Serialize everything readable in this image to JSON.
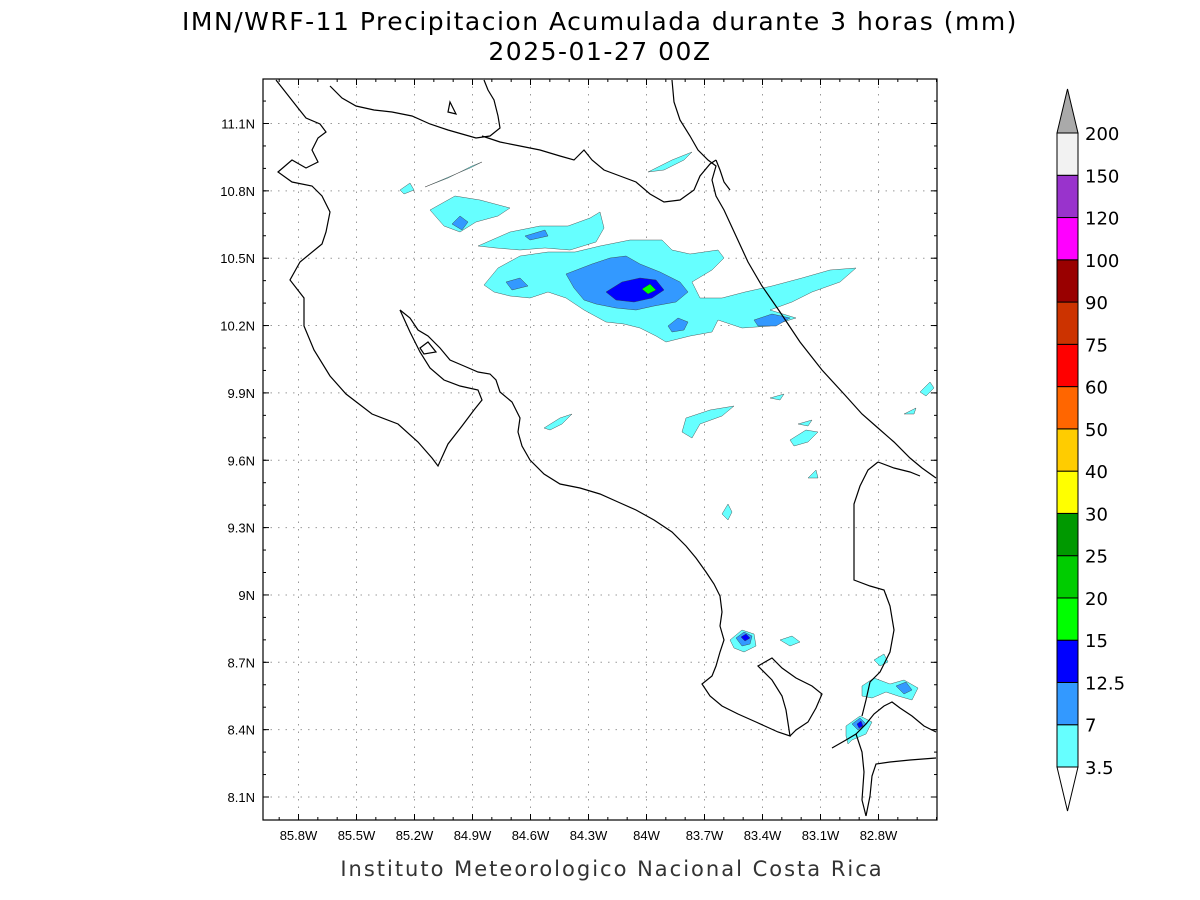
{
  "title_line1": "IMN/WRF-11 Precipitacion Acumulada durante 3 horas (mm)",
  "title_line2": "2025-01-27 00Z",
  "credit": "Instituto Meteorologico Nacional Costa Rica",
  "lat_labels": [
    {
      "lat": 11.1,
      "label": "11.1N"
    },
    {
      "lat": 10.8,
      "label": "10.8N"
    },
    {
      "lat": 10.5,
      "label": "10.5N"
    },
    {
      "lat": 10.2,
      "label": "10.2N"
    },
    {
      "lat": 9.9,
      "label": "9.9N"
    },
    {
      "lat": 9.6,
      "label": "9.6N"
    },
    {
      "lat": 9.3,
      "label": "9.3N"
    },
    {
      "lat": 9.0,
      "label": "9N"
    },
    {
      "lat": 8.7,
      "label": "8.7N"
    },
    {
      "lat": 8.4,
      "label": "8.4N"
    },
    {
      "lat": 8.1,
      "label": "8.1N"
    }
  ],
  "lon_labels": [
    {
      "lon": -85.8,
      "label": "85.8W"
    },
    {
      "lon": -85.5,
      "label": "85.5W"
    },
    {
      "lon": -85.2,
      "label": "85.2W"
    },
    {
      "lon": -84.9,
      "label": "84.9W"
    },
    {
      "lon": -84.6,
      "label": "84.6W"
    },
    {
      "lon": -84.3,
      "label": "84.3W"
    },
    {
      "lon": -84.0,
      "label": "84W"
    },
    {
      "lon": -83.7,
      "label": "83.7W"
    },
    {
      "lon": -83.4,
      "label": "83.4W"
    },
    {
      "lon": -83.1,
      "label": "83.1W"
    },
    {
      "lon": -82.8,
      "label": "82.8W"
    }
  ],
  "colorbar": {
    "levels": [
      "3.5",
      "7",
      "12.5",
      "15",
      "20",
      "25",
      "30",
      "40",
      "50",
      "60",
      "75",
      "90",
      "100",
      "120",
      "150",
      "200"
    ],
    "colors": [
      "#66ffff",
      "#3399ff",
      "#0000ff",
      "#00ff00",
      "#00cc00",
      "#009900",
      "#ffff00",
      "#ffcc00",
      "#ff6600",
      "#ff0000",
      "#cc3300",
      "#990000",
      "#ff00ff",
      "#9933cc",
      "#f2f2f2"
    ],
    "below_color": "#ffffff",
    "above_color": "#aaaaaa"
  },
  "map_style": {
    "coast_color": "#000000",
    "grid_color": "#999999",
    "contour_color": "#333333"
  }
}
